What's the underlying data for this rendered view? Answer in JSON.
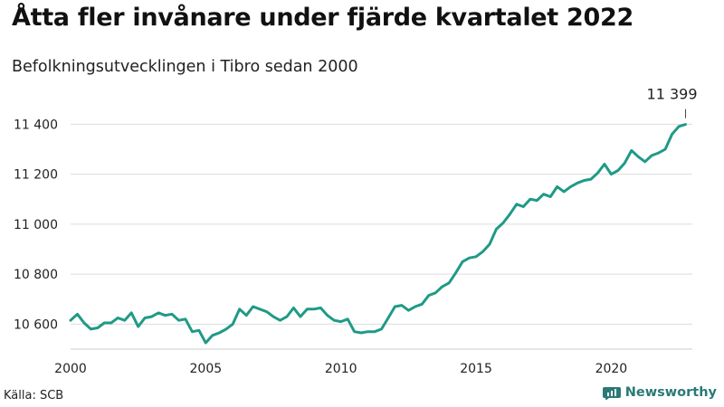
{
  "title": "Åtta fler invånare under fjärde kvartalet 2022",
  "subtitle": "Befolkningsutvecklingen i Tibro sedan 2000",
  "source": "Källa: SCB",
  "brand": {
    "name": "Newsworthy",
    "icon": "newsworthy-chart-logo-icon"
  },
  "colors": {
    "line": "#1f9a87",
    "grid": "#dddddd",
    "axis": "#cccccc",
    "brand": "#2a7a75"
  },
  "chart_data": {
    "type": "line",
    "title": "Åtta fler invånare under fjärde kvartalet 2022",
    "subtitle": "Befolkningsutvecklingen i Tibro sedan 2000",
    "xlabel": "",
    "ylabel": "",
    "xlim": [
      2000,
      2023
    ],
    "ylim": [
      10500,
      11470
    ],
    "x_ticks": [
      2000,
      2005,
      2010,
      2015,
      2020
    ],
    "x_tick_labels": [
      "2000",
      "2005",
      "2010",
      "2015",
      "2020"
    ],
    "y_ticks": [
      10600,
      10800,
      11000,
      11200,
      11400
    ],
    "y_tick_labels": [
      "10 600",
      "10 800",
      "11 000",
      "11 200",
      "11 400"
    ],
    "grid": "horizontal",
    "annotation": {
      "x": 2022.75,
      "y": 11399,
      "label": "11 399"
    },
    "series": [
      {
        "x": [
          2000.0,
          2000.25,
          2000.5,
          2000.75,
          2001.0,
          2001.25,
          2001.5,
          2001.75,
          2002.0,
          2002.25,
          2002.5,
          2002.75,
          2003.0,
          2003.25,
          2003.5,
          2003.75,
          2004.0,
          2004.25,
          2004.5,
          2004.75,
          2005.0,
          2005.25,
          2005.5,
          2005.75,
          2006.0,
          2006.25,
          2006.5,
          2006.75,
          2007.0,
          2007.25,
          2007.5,
          2007.75,
          2008.0,
          2008.25,
          2008.5,
          2008.75,
          2009.0,
          2009.25,
          2009.5,
          2009.75,
          2010.0,
          2010.25,
          2010.5,
          2010.75,
          2011.0,
          2011.25,
          2011.5,
          2011.75,
          2012.0,
          2012.25,
          2012.5,
          2012.75,
          2013.0,
          2013.25,
          2013.5,
          2013.75,
          2014.0,
          2014.25,
          2014.5,
          2014.75,
          2015.0,
          2015.25,
          2015.5,
          2015.75,
          2016.0,
          2016.25,
          2016.5,
          2016.75,
          2017.0,
          2017.25,
          2017.5,
          2017.75,
          2018.0,
          2018.25,
          2018.5,
          2018.75,
          2019.0,
          2019.25,
          2019.5,
          2019.75,
          2020.0,
          2020.25,
          2020.5,
          2020.75,
          2021.0,
          2021.25,
          2021.5,
          2021.75,
          2022.0,
          2022.25,
          2022.5,
          2022.75
        ],
        "y": [
          10615,
          10640,
          10605,
          10580,
          10585,
          10605,
          10605,
          10625,
          10615,
          10645,
          10590,
          10625,
          10630,
          10645,
          10635,
          10640,
          10615,
          10620,
          10570,
          10575,
          10525,
          10555,
          10565,
          10580,
          10600,
          10660,
          10635,
          10670,
          10660,
          10650,
          10630,
          10615,
          10630,
          10665,
          10630,
          10660,
          10660,
          10665,
          10635,
          10615,
          10610,
          10620,
          10570,
          10565,
          10570,
          10570,
          10580,
          10625,
          10670,
          10675,
          10655,
          10670,
          10680,
          10715,
          10725,
          10750,
          10765,
          10805,
          10850,
          10865,
          10870,
          10890,
          10920,
          10980,
          11005,
          11040,
          11080,
          11070,
          11100,
          11095,
          11120,
          11110,
          11150,
          11130,
          11150,
          11165,
          11175,
          11180,
          11205,
          11240,
          11200,
          11215,
          11245,
          11295,
          11270,
          11250,
          11275,
          11285,
          11300,
          11360,
          11391,
          11399
        ]
      }
    ]
  }
}
